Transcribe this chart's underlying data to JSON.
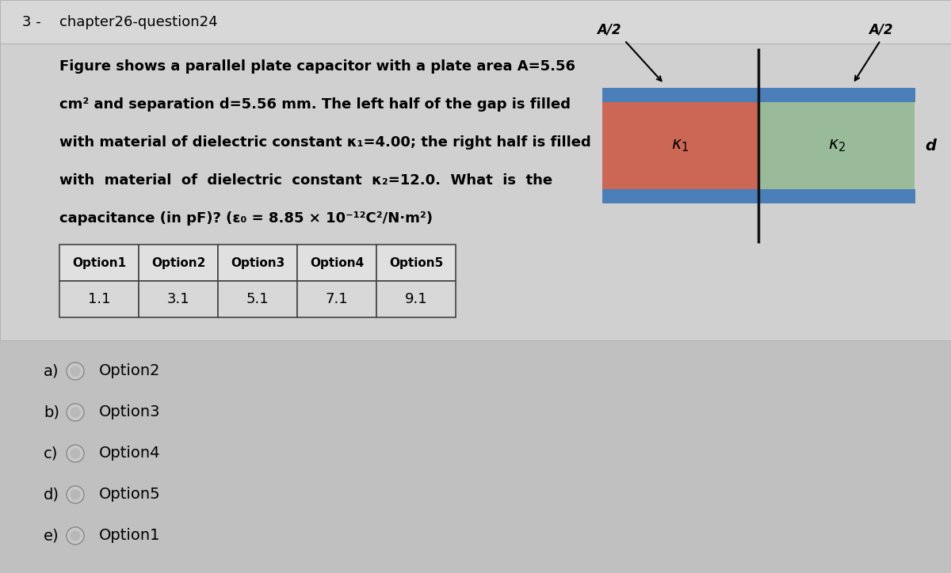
{
  "bg_color": "#c0c0c0",
  "header_color": "#d4d4d4",
  "content_color": "#cecece",
  "question_number": "3 -",
  "question_title": "chapter26-question24",
  "question_lines": [
    "Figure shows a parallel plate capacitor with a plate area A=5.56",
    "cm² and separation d=5.56 mm. The left half of the gap is filled",
    "with material of dielectric constant κ₁=4.00; the right half is filled",
    "with  material  of  dielectric  constant  κ₂=12.0.  What  is  the",
    "capacitance (in pF)? (ε₀ = 8.85 × 10⁻¹²C²/N·m²)"
  ],
  "table_headers": [
    "Option1",
    "Option2",
    "Option3",
    "Option4",
    "Option5"
  ],
  "table_values": [
    "1.1",
    "3.1",
    "5.1",
    "7.1",
    "9.1"
  ],
  "options": [
    {
      "label": "a)",
      "text": "Option2"
    },
    {
      "label": "b)",
      "text": "Option3"
    },
    {
      "label": "c)",
      "text": "Option4"
    },
    {
      "label": "d)",
      "text": "Option5"
    },
    {
      "label": "e)",
      "text": "Option1"
    }
  ],
  "diagram": {
    "plate_color": "#4a7fba",
    "left_fill_color": "#cc6655",
    "right_fill_color": "#99bb99",
    "divider_color": "#111111"
  }
}
